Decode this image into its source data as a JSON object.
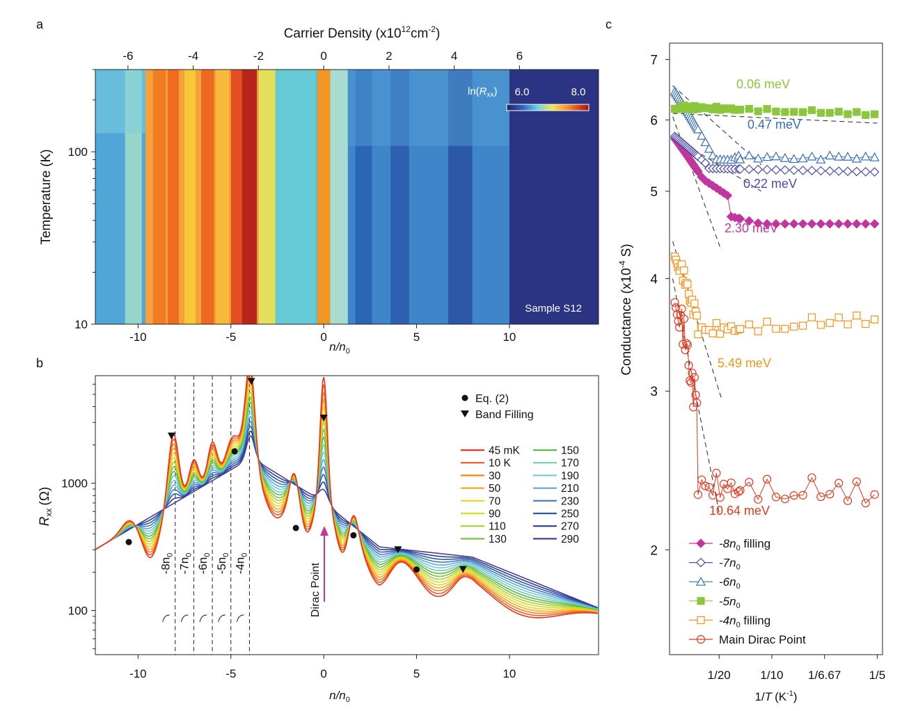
{
  "panel_labels": {
    "a": "a",
    "b": "b",
    "c": "c"
  },
  "colors": {
    "temperature": [
      "#e8341c",
      "#ee5a1e",
      "#f5821f",
      "#f9a825",
      "#f2d024",
      "#d4dd1f",
      "#a7d13a",
      "#7cc33b",
      "#5cb84b",
      "#74cbb0",
      "#79c7dc",
      "#5fa8d8",
      "#3f7cc0",
      "#2f58a8",
      "#2a3e93",
      "#4b3b8f"
    ],
    "filling": {
      "-8n0": "#c0369c",
      "-7n0": "#4e4aa8",
      "-6n0": "#3a6fb3",
      "-5n0": "#8cc63f",
      "-4n0": "#f7931e",
      "main": "#e23a1e"
    }
  },
  "chart_data": [
    {
      "id": "a",
      "type": "heatmap",
      "title": "",
      "top_axis_label": "Carrier Density (x10",
      "top_axis_sup1": "12",
      "top_axis_mid": "cm",
      "top_axis_sup2": "-2",
      "top_axis_close": ")",
      "top_ticks": [
        -6,
        -4,
        -2,
        0,
        2,
        4,
        6
      ],
      "top_tick_labels": [
        "-6",
        "-4",
        "-2",
        "0",
        "2",
        "4",
        "6"
      ],
      "xlabel_italic": "n/n",
      "xlabel_sub": "0",
      "x_ticks": [
        -10,
        -5,
        0,
        5,
        10
      ],
      "x_tick_labels": [
        "-10",
        "-5",
        "0",
        "5",
        "10"
      ],
      "xlim": [
        -12.3,
        14.8
      ],
      "ylabel": "Temperature (K)",
      "y_scale": "log",
      "ylim": [
        10,
        300
      ],
      "y_ticks": [
        10,
        100
      ],
      "y_tick_labels": [
        "10",
        "100"
      ],
      "colorbar_label_prefix": "ln(",
      "colorbar_label_italic": "R",
      "colorbar_label_sub": "xx",
      "colorbar_label_suffix": ")",
      "colorbar_ticks": [
        6.0,
        8.0
      ],
      "colorbar_tick_labels": [
        "6.0",
        "8.0"
      ],
      "annotation": "Sample S12",
      "resistance_peaks_n": [
        -10,
        -8,
        -7,
        -6,
        -5,
        -4,
        0,
        4,
        8
      ]
    },
    {
      "id": "b",
      "type": "line",
      "xlabel_italic": "n/n",
      "xlabel_sub": "0",
      "x_ticks": [
        -10,
        -5,
        0,
        5,
        10
      ],
      "x_tick_labels": [
        "-10",
        "-5",
        "0",
        "5",
        "10"
      ],
      "xlim": [
        -12.3,
        14.8
      ],
      "ylabel_italic": "R",
      "ylabel_sub": "xx",
      "ylabel_unit": "(Ω)",
      "y_scale": "log",
      "ylim": [
        45,
        7000
      ],
      "y_ticks": [
        100,
        1000
      ],
      "y_tick_labels": [
        "100",
        "1000"
      ],
      "dashed_lines_n": [
        -8,
        -7,
        -6,
        -5,
        -4
      ],
      "filling_labels": [
        "-8n",
        "-7n",
        "-6n",
        "-5n",
        "-4n"
      ],
      "filling_label_sub": "0",
      "markers_eq2": [
        {
          "x": -10.5,
          "y": 345
        },
        {
          "x": -4.8,
          "y": 1780
        },
        {
          "x": -1.5,
          "y": 445
        },
        {
          "x": 1.6,
          "y": 390
        },
        {
          "x": 5.0,
          "y": 210
        }
      ],
      "markers_band": [
        {
          "x": -8.2,
          "y": 2350
        },
        {
          "x": -3.9,
          "y": 6300
        },
        {
          "x": 0,
          "y": 3250
        },
        {
          "x": 4.0,
          "y": 300
        },
        {
          "x": 7.5,
          "y": 210
        }
      ],
      "legend_eq2": "Eq. (2)",
      "legend_band": "Band Filling",
      "dirac_label": "Dirac Point",
      "temperature_labels": [
        "45 mK",
        "10 K",
        "30",
        "50",
        "70",
        "90",
        "110",
        "130",
        "150",
        "170",
        "190",
        "210",
        "230",
        "250",
        "270",
        "290"
      ],
      "temperatures_K": [
        0.045,
        10,
        30,
        50,
        70,
        90,
        110,
        130,
        150,
        170,
        190,
        210,
        230,
        250,
        270,
        290
      ]
    },
    {
      "id": "c",
      "type": "scatter",
      "xlabel_prefix": "1/",
      "xlabel_italic": "T",
      "xlabel_unit": "(K",
      "xlabel_sup": "-1",
      "xlabel_close": ")",
      "x_ticks": [
        0.05,
        0.1,
        0.15,
        0.2
      ],
      "x_tick_labels": [
        "1/20",
        "1/10",
        "1/6.67",
        "1/5"
      ],
      "xlim": [
        0.003,
        0.205
      ],
      "ylabel": "Conductance (x10",
      "ylabel_sup": "-4",
      "ylabel_unit": " S)",
      "y_scale": "log",
      "ylim": [
        1.53,
        7.3
      ],
      "y_ticks": [
        2,
        3,
        4,
        5,
        6,
        7
      ],
      "y_tick_labels": [
        "2",
        "3",
        "4",
        "5",
        "6",
        "7"
      ],
      "series": [
        {
          "name": "-8n",
          "sub": "0",
          "suffix": " filling",
          "marker": "diamond-filled",
          "color_key": "-8n0",
          "gap": "2.30 meV"
        },
        {
          "name": "-7n",
          "sub": "0",
          "suffix": "",
          "marker": "diamond-open",
          "color_key": "-7n0",
          "gap": "0.22 meV"
        },
        {
          "name": "-6n",
          "sub": "0",
          "suffix": "",
          "marker": "triangle-open",
          "color_key": "-6n0",
          "gap": "0.47 meV"
        },
        {
          "name": "-5n",
          "sub": "0",
          "suffix": "",
          "marker": "square-filled",
          "color_key": "-5n0",
          "gap": "0.06 meV"
        },
        {
          "name": "-4n",
          "sub": "0",
          "suffix": " filling",
          "marker": "square-open",
          "color_key": "-4n0",
          "gap": "5.49 meV"
        },
        {
          "name": "Main Dirac Point",
          "sub": "",
          "suffix": "",
          "marker": "circle-open",
          "color_key": "main",
          "gap": "10.64 meV"
        }
      ]
    }
  ]
}
